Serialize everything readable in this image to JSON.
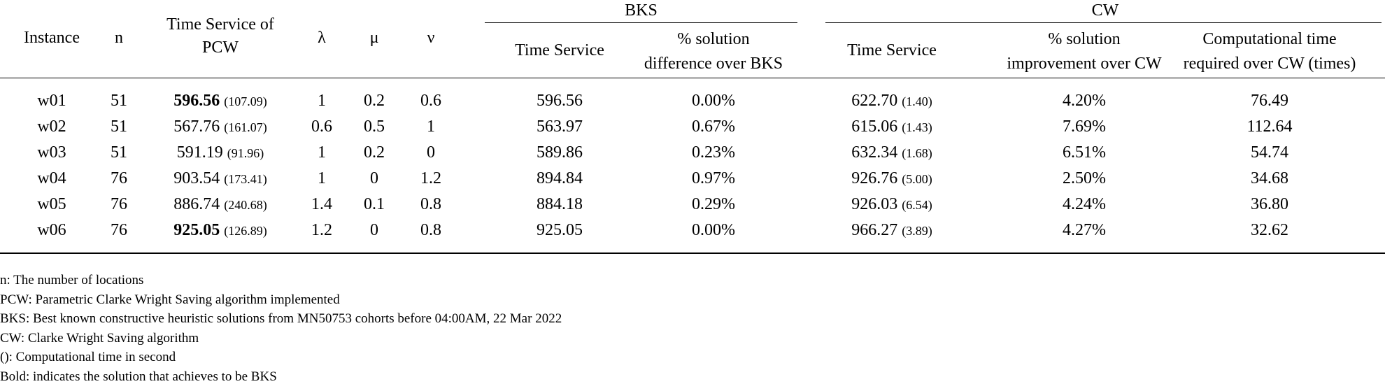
{
  "headers": {
    "instance": "Instance",
    "n": "n",
    "time_service_pcw_1": "Time Service of",
    "time_service_pcw_2": "PCW",
    "lambda": "λ",
    "mu": "μ",
    "nu": "ν",
    "bks_group": "BKS",
    "bks_time_service": "Time Service",
    "bks_pct_1": "% solution",
    "bks_pct_2": "difference over BKS",
    "cw_group": "CW",
    "cw_time_service": "Time Service",
    "cw_pct_1": "% solution",
    "cw_pct_2": "improvement over CW",
    "cw_comp_1": "Computational time",
    "cw_comp_2": "required over CW (times)"
  },
  "rows": [
    {
      "instance": "w01",
      "n": "51",
      "pcw": "596.56",
      "pcw_time": "(107.09)",
      "bold": true,
      "lambda": "1",
      "mu": "0.2",
      "nu": "0.6",
      "bks": "596.56",
      "bks_diff": "0.00%",
      "cw": "622.70",
      "cw_time": "(1.40)",
      "cw_impr": "4.20%",
      "comp": "76.49"
    },
    {
      "instance": "w02",
      "n": "51",
      "pcw": "567.76",
      "pcw_time": "(161.07)",
      "bold": false,
      "lambda": "0.6",
      "mu": "0.5",
      "nu": "1",
      "bks": "563.97",
      "bks_diff": "0.67%",
      "cw": "615.06",
      "cw_time": "(1.43)",
      "cw_impr": "7.69%",
      "comp": "112.64"
    },
    {
      "instance": "w03",
      "n": "51",
      "pcw": "591.19",
      "pcw_time": "(91.96)",
      "bold": false,
      "lambda": "1",
      "mu": "0.2",
      "nu": "0",
      "bks": "589.86",
      "bks_diff": "0.23%",
      "cw": "632.34",
      "cw_time": "(1.68)",
      "cw_impr": "6.51%",
      "comp": "54.74"
    },
    {
      "instance": "w04",
      "n": "76",
      "pcw": "903.54",
      "pcw_time": "(173.41)",
      "bold": false,
      "lambda": "1",
      "mu": "0",
      "nu": "1.2",
      "bks": "894.84",
      "bks_diff": "0.97%",
      "cw": "926.76",
      "cw_time": "(5.00)",
      "cw_impr": "2.50%",
      "comp": "34.68"
    },
    {
      "instance": "w05",
      "n": "76",
      "pcw": "886.74",
      "pcw_time": "(240.68)",
      "bold": false,
      "lambda": "1.4",
      "mu": "0.1",
      "nu": "0.8",
      "bks": "884.18",
      "bks_diff": "0.29%",
      "cw": "926.03",
      "cw_time": "(6.54)",
      "cw_impr": "4.24%",
      "comp": "36.80"
    },
    {
      "instance": "w06",
      "n": "76",
      "pcw": "925.05",
      "pcw_time": "(126.89)",
      "bold": true,
      "lambda": "1.2",
      "mu": "0",
      "nu": "0.8",
      "bks": "925.05",
      "bks_diff": "0.00%",
      "cw": "966.27",
      "cw_time": "(3.89)",
      "cw_impr": "4.27%",
      "comp": "32.62"
    }
  ],
  "notes": [
    "n: The number of locations",
    "PCW: Parametric Clarke Wright Saving algorithm implemented",
    "BKS: Best known constructive heuristic solutions from MN50753 cohorts before 04:00AM, 22 Mar 2022",
    "CW: Clarke Wright Saving algorithm",
    "(): Computational time in second",
    "Bold: indicates the solution that achieves to be BKS"
  ]
}
